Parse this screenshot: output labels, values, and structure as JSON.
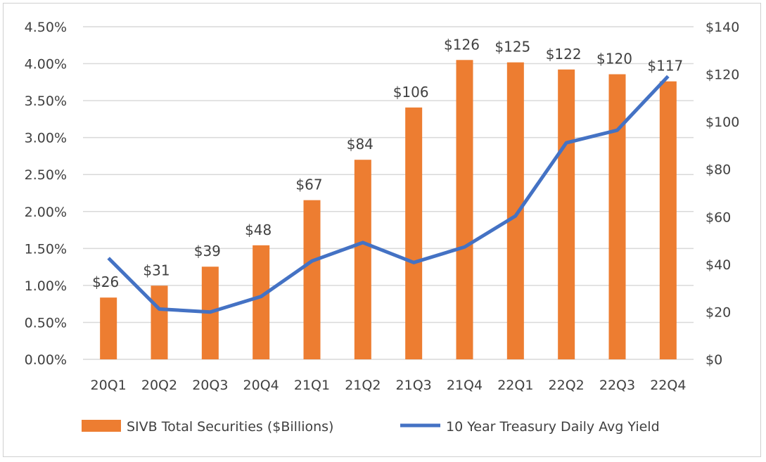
{
  "chart_data": {
    "type": "bar+line",
    "categories": [
      "20Q1",
      "20Q2",
      "20Q3",
      "20Q4",
      "21Q1",
      "21Q2",
      "21Q3",
      "21Q4",
      "22Q1",
      "22Q2",
      "22Q3",
      "22Q4"
    ],
    "series": [
      {
        "name": "SIVB Total Securities ($Billions)",
        "type": "bar",
        "axis": "right",
        "color": "#ED7D31",
        "values": [
          26,
          31,
          39,
          48,
          67,
          84,
          106,
          126,
          125,
          122,
          120,
          117
        ],
        "labels": [
          "$26",
          "$31",
          "$39",
          "$48",
          "$67",
          "$84",
          "$106",
          "$126",
          "$125",
          "$122",
          "$120",
          "$117"
        ]
      },
      {
        "name": "10 Year Treasury Daily Avg Yield",
        "type": "line",
        "axis": "left",
        "color": "#4472C4",
        "values": [
          1.37,
          0.68,
          0.64,
          0.85,
          1.33,
          1.58,
          1.31,
          1.52,
          1.94,
          2.93,
          3.1,
          3.83
        ]
      }
    ],
    "left_axis": {
      "range": [
        0,
        4.5
      ],
      "ticks": [
        "0.00%",
        "0.50%",
        "1.00%",
        "1.50%",
        "2.00%",
        "2.50%",
        "3.00%",
        "3.50%",
        "4.00%",
        "4.50%"
      ]
    },
    "right_axis": {
      "range": [
        0,
        140
      ],
      "ticks": [
        "$0",
        "$20",
        "$40",
        "$60",
        "$80",
        "$100",
        "$120",
        "$140"
      ]
    },
    "grid": true,
    "legend": "bottom"
  }
}
